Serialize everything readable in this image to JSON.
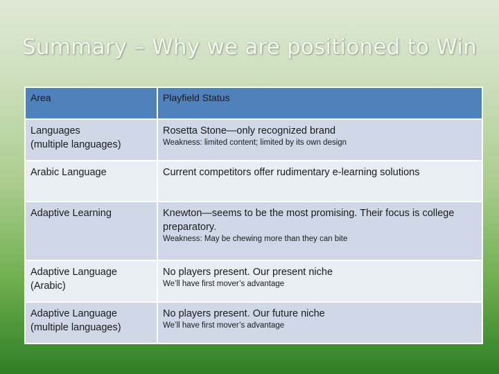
{
  "slide": {
    "title": "Summary – Why we are positioned to Win"
  },
  "table": {
    "headers": {
      "area": "Area",
      "status": "Playfield Status"
    },
    "rows": [
      {
        "area_line1": "Languages",
        "area_line2": "(multiple languages)",
        "status": "Rosetta Stone—only recognized brand",
        "note": "Weakness: limited content; limited by its own design"
      },
      {
        "area_line1": "Arabic Language",
        "area_line2": "",
        "status": "Current competitors offer rudimentary e-learning solutions",
        "note": ""
      },
      {
        "area_line1": "Adaptive Learning",
        "area_line2": "",
        "status": "Knewton—seems to be the most promising. Their focus is college preparatory.",
        "note": "Weakness: May be chewing more than they can bite"
      },
      {
        "area_line1": "Adaptive Language",
        "area_line2": "(Arabic)",
        "status": "No players present.  Our present niche",
        "note": "We’ll have first mover’s advantage"
      },
      {
        "area_line1": "Adaptive Language",
        "area_line2": "(multiple languages)",
        "status": "No players present.  Our future niche",
        "note": "We’ll have first mover’s advantage"
      }
    ]
  },
  "colors": {
    "header_bg": "#4f81bd",
    "row_dark": "#d0d8e8",
    "row_light": "#e9edf4",
    "background_top": "#dfe9d6",
    "background_bottom": "#2f7f24"
  }
}
